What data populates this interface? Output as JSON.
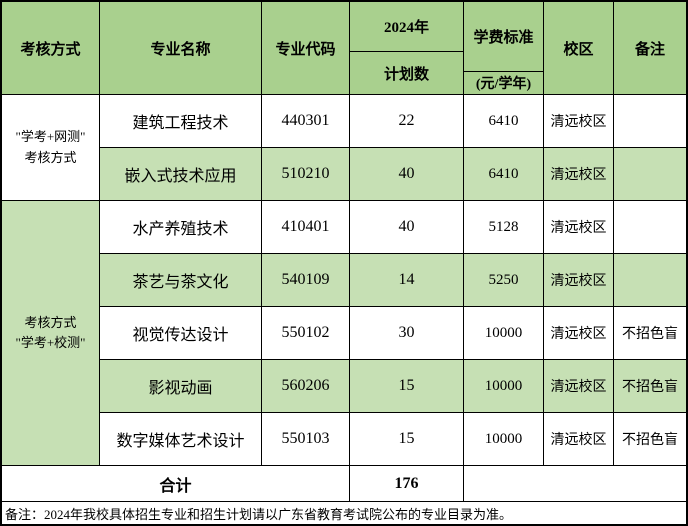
{
  "table": {
    "headers": {
      "assessment": "考核方式",
      "major_name": "专业名称",
      "major_code": "专业代码",
      "year": "2024年",
      "plan_count": "计划数",
      "tuition": "学费标准",
      "tuition_unit": "(元/学年)",
      "campus": "校区",
      "remark": "备注"
    },
    "groups": [
      {
        "line1": "\"学考+网测\"",
        "line2": "考核方式"
      },
      {
        "line1": "考核方式",
        "line2": "\"学考+校测\""
      }
    ],
    "rows": [
      {
        "major": "建筑工程技术",
        "code": "440301",
        "plan": "22",
        "tuition": "6410",
        "campus": "清远校区",
        "note": ""
      },
      {
        "major": "嵌入式技术应用",
        "code": "510210",
        "plan": "40",
        "tuition": "6410",
        "campus": "清远校区",
        "note": ""
      },
      {
        "major": "水产养殖技术",
        "code": "410401",
        "plan": "40",
        "tuition": "5128",
        "campus": "清远校区",
        "note": ""
      },
      {
        "major": "茶艺与茶文化",
        "code": "540109",
        "plan": "14",
        "tuition": "5250",
        "campus": "清远校区",
        "note": ""
      },
      {
        "major": "视觉传达设计",
        "code": "550102",
        "plan": "30",
        "tuition": "10000",
        "campus": "清远校区",
        "note": "不招色盲"
      },
      {
        "major": "影视动画",
        "code": "560206",
        "plan": "15",
        "tuition": "10000",
        "campus": "清远校区",
        "note": "不招色盲"
      },
      {
        "major": "数字媒体艺术设计",
        "code": "550103",
        "plan": "15",
        "tuition": "10000",
        "campus": "清远校区",
        "note": "不招色盲"
      }
    ],
    "total": {
      "label": "合计",
      "plan": "176"
    },
    "footer_note": "备注：2024年我校具体招生专业和招生计划请以广东省教育考试院公布的专业目录为准。"
  },
  "colors": {
    "header_green": "#a9d08e",
    "row_green": "#c6e0b4",
    "border": "#000000"
  }
}
